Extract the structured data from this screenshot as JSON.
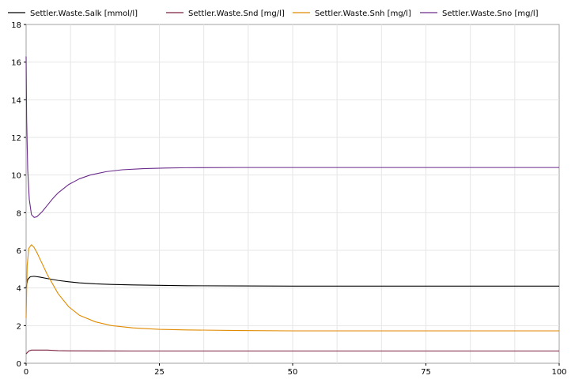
{
  "chart_data": {
    "type": "line",
    "title": "",
    "xlabel": "",
    "ylabel": "",
    "xlim": [
      0,
      100
    ],
    "ylim": [
      0,
      18
    ],
    "x_ticks": [
      0,
      25,
      50,
      75,
      100
    ],
    "x_tick_labels": [
      "0",
      "25",
      "50",
      "75",
      "100"
    ],
    "y_ticks": [
      0,
      2,
      4,
      6,
      8,
      10,
      12,
      14,
      16,
      18
    ],
    "y_tick_labels": [
      "0",
      "2",
      "4",
      "6",
      "8",
      "10",
      "12",
      "14",
      "16",
      "18"
    ],
    "grid": true,
    "legend_position": "top",
    "series": [
      {
        "name": "Settler.Waste.Salk [mmol/l]",
        "color": "#000000",
        "x": [
          0,
          0.3,
          0.8,
          1.5,
          2.5,
          4,
          6,
          8,
          10,
          13,
          16,
          20,
          25,
          30,
          40,
          50,
          75,
          100
        ],
        "y": [
          4.0,
          4.45,
          4.6,
          4.62,
          4.58,
          4.5,
          4.4,
          4.33,
          4.27,
          4.22,
          4.19,
          4.16,
          4.14,
          4.12,
          4.11,
          4.1,
          4.1,
          4.1
        ]
      },
      {
        "name": "Settler.Waste.Snd [mg/l]",
        "color": "#7a1e3c",
        "x": [
          0,
          0.5,
          1,
          2,
          4,
          6,
          8,
          20,
          50,
          100
        ],
        "y": [
          0.5,
          0.65,
          0.7,
          0.7,
          0.7,
          0.67,
          0.66,
          0.65,
          0.65,
          0.65
        ]
      },
      {
        "name": "Settler.Waste.Snh [mg/l]",
        "color": "#e08a00",
        "x": [
          0,
          0.2,
          0.5,
          1,
          1.5,
          2,
          3,
          4,
          6,
          8,
          10,
          13,
          16,
          20,
          25,
          30,
          40,
          50,
          75,
          100
        ],
        "y": [
          2.4,
          5.2,
          6.1,
          6.3,
          6.15,
          5.9,
          5.3,
          4.7,
          3.7,
          3.0,
          2.55,
          2.2,
          2.0,
          1.88,
          1.8,
          1.77,
          1.74,
          1.72,
          1.72,
          1.72
        ]
      },
      {
        "name": "Settler.Waste.Sno [mg/l]",
        "color": "#6a2a8a",
        "x": [
          0,
          0.1,
          0.3,
          0.6,
          1,
          1.5,
          2,
          3,
          4,
          5,
          6,
          8,
          10,
          12,
          15,
          18,
          22,
          26,
          30,
          40,
          50,
          75,
          100
        ],
        "y": [
          16.3,
          13.0,
          10.3,
          8.7,
          7.9,
          7.75,
          7.78,
          8.05,
          8.4,
          8.75,
          9.05,
          9.5,
          9.8,
          10.0,
          10.18,
          10.28,
          10.34,
          10.37,
          10.39,
          10.4,
          10.4,
          10.4,
          10.4
        ]
      }
    ]
  }
}
